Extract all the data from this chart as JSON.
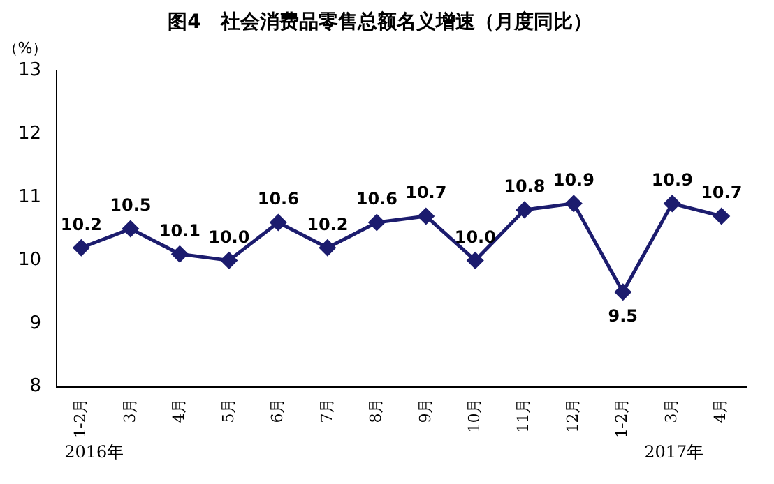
{
  "chart_data": {
    "type": "line",
    "title": "图4　社会消费品零售总额名义增速（月度同比）",
    "ylabel": "（%）",
    "categories": [
      "1-2月",
      "3月",
      "4月",
      "5月",
      "6月",
      "7月",
      "8月",
      "9月",
      "10月",
      "11月",
      "12月",
      "1-2月",
      "3月",
      "4月"
    ],
    "series": [
      {
        "color": "#1c1c6e",
        "values": [
          10.2,
          10.5,
          10.1,
          10.0,
          10.6,
          10.2,
          10.6,
          10.7,
          10.0,
          10.8,
          10.9,
          9.5,
          10.9,
          10.7
        ],
        "value_labels": [
          "10.2",
          "10.5",
          "10.1",
          "10.0",
          "10.6",
          "10.2",
          "10.6",
          "10.7",
          "10.0",
          "10.8",
          "10.9",
          "9.5",
          "10.9",
          "10.7"
        ]
      }
    ],
    "ylim": [
      8,
      13
    ],
    "yticks": [
      8,
      9,
      10,
      11,
      12,
      13
    ],
    "grid": false,
    "legend": false,
    "marker": "diamond",
    "line_style": "solid",
    "annotations": [
      "2016年",
      "2017年"
    ]
  }
}
